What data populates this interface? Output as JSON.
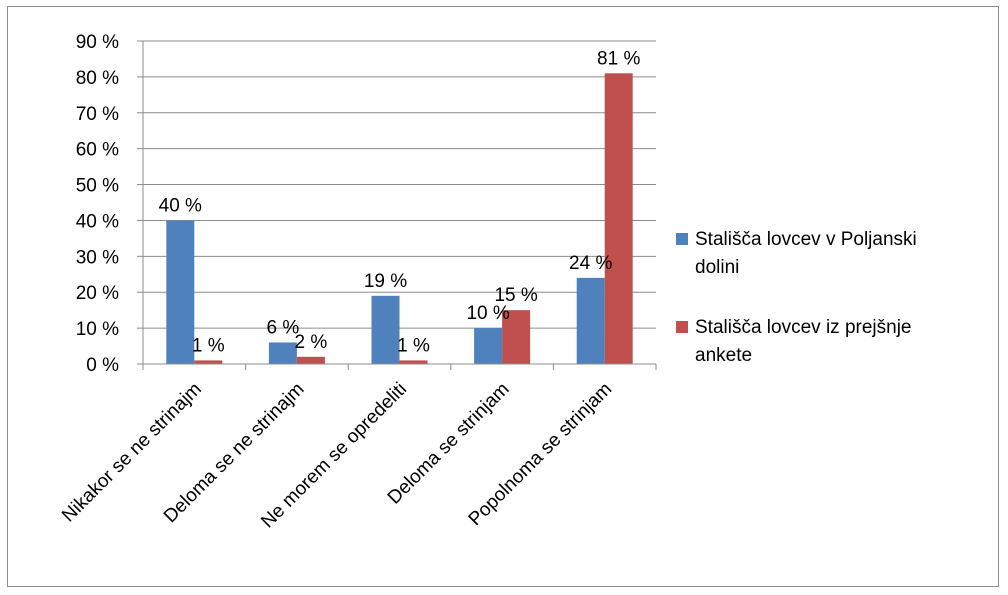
{
  "chart_data": {
    "type": "bar",
    "categories": [
      "Nikakor se ne strinajm",
      "Deloma se ne strinajm",
      "Ne morem se opredeliti",
      "Deloma se strinjam",
      "Popolnoma se strinjam"
    ],
    "series": [
      {
        "name": "Stališča lovcev v Poljanski dolini",
        "values": [
          40,
          6,
          19,
          10,
          24
        ],
        "labels": [
          "40 %",
          "6 %",
          "19 %",
          "10 %",
          "24 %"
        ],
        "color": "#4f81bd"
      },
      {
        "name": "Stališča lovcev iz prejšnje ankete",
        "values": [
          1,
          2,
          1,
          15,
          81
        ],
        "labels": [
          "1 %",
          "2 %",
          "1 %",
          "15 %",
          "81 %"
        ],
        "color": "#c0504d"
      }
    ],
    "yticks": [
      "0 %",
      "10 %",
      "20 %",
      "30 %",
      "40 %",
      "50 %",
      "60 %",
      "70 %",
      "80 %",
      "90 %"
    ],
    "ylim": [
      0,
      90
    ],
    "grid": true,
    "legend_position": "right",
    "legend_lines": [
      [
        "Stališča lovcev v Poljanski",
        "dolini"
      ],
      [
        "Stališča lovcev iz prejšnje",
        "ankete"
      ]
    ]
  }
}
